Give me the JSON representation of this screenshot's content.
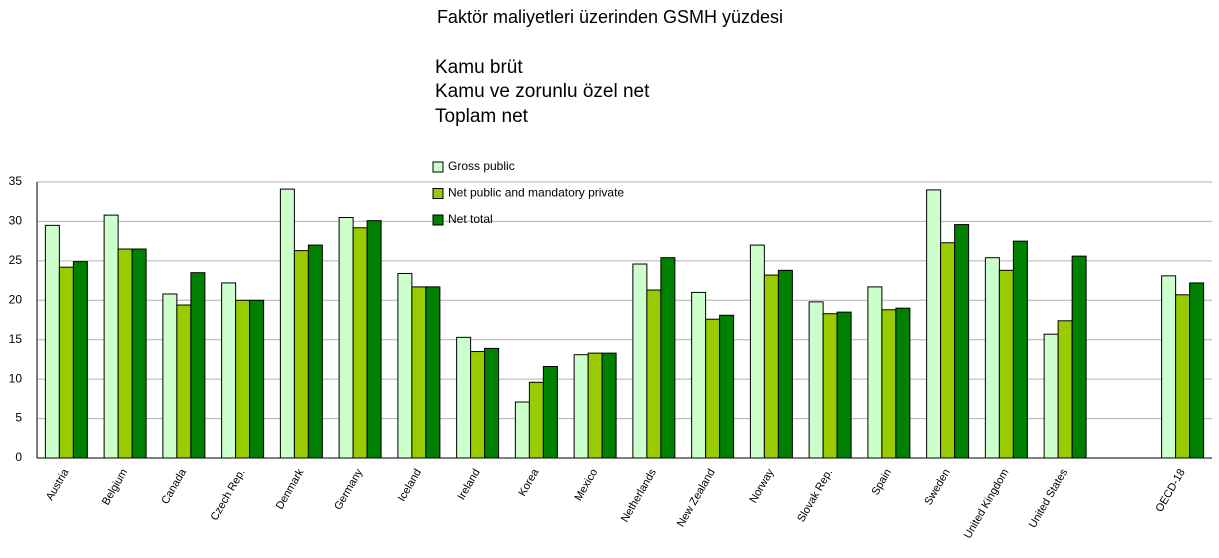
{
  "chart_data": {
    "type": "bar",
    "title": "Faktör maliyetleri üzerinden GSMH yüzdesi",
    "subtitle_lines": [
      "Kamu brüt",
      "Kamu ve zorunlu özel net",
      "Toplam net"
    ],
    "categories": [
      "Austria",
      "Belgium",
      "Canada",
      "Czech Rep.",
      "Denmark",
      "Germany",
      "Iceland",
      "Ireland",
      "Korea",
      "Mexico",
      "Netherlands",
      "New Zealand",
      "Norway",
      "Slovak Rep.",
      "Spain",
      "Sweden",
      "United Kingdom",
      "United States",
      null,
      "OECD-18"
    ],
    "series": [
      {
        "name": "Gross public",
        "color": "#ccffcc",
        "values": [
          29.5,
          30.8,
          20.8,
          22.2,
          34.1,
          30.5,
          23.4,
          15.3,
          7.1,
          13.1,
          24.6,
          21.0,
          27.0,
          19.8,
          21.7,
          34.0,
          25.4,
          15.7,
          null,
          23.1
        ]
      },
      {
        "name": "Net public and mandatory private",
        "color": "#99cc00",
        "values": [
          24.2,
          26.5,
          19.4,
          20.0,
          26.3,
          29.2,
          21.7,
          13.5,
          9.6,
          13.3,
          21.3,
          17.6,
          23.2,
          18.3,
          18.8,
          27.3,
          23.8,
          17.4,
          null,
          20.7
        ]
      },
      {
        "name": "Net total",
        "color": "#008000",
        "values": [
          24.9,
          26.5,
          23.5,
          20.0,
          27.0,
          30.1,
          21.7,
          13.9,
          11.6,
          13.3,
          25.4,
          18.1,
          23.8,
          18.5,
          19.0,
          29.6,
          27.5,
          25.6,
          null,
          22.2
        ]
      }
    ],
    "ylim": [
      0,
      35
    ],
    "yticks": [
      0,
      5,
      10,
      15,
      20,
      25,
      30,
      35
    ],
    "grid": true
  }
}
